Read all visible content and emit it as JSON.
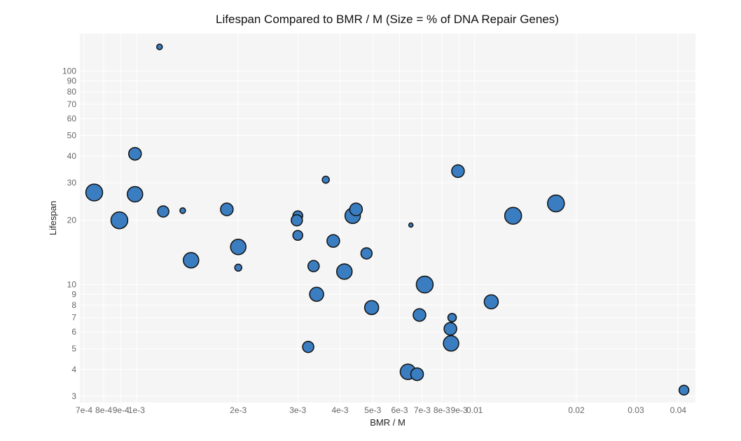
{
  "chart_data": {
    "type": "scatter",
    "title": "Lifespan Compared to BMR / M (Size = % of DNA Repair Genes)",
    "xlabel": "BMR / M",
    "ylabel": "Lifespan",
    "x_scale": "log",
    "y_scale": "log",
    "xlim": [
      0.00068,
      0.045
    ],
    "ylim": [
      2.8,
      150
    ],
    "grid": true,
    "legend": "none",
    "colors": {
      "marker_fill": "#3a7dc0",
      "marker_stroke": "#111111",
      "panel_bg": "#f5f5f5",
      "grid": "#ffffff"
    },
    "x_ticks": [
      {
        "value": 0.0007,
        "label": "7e-4"
      },
      {
        "value": 0.0008,
        "label": "8e-4"
      },
      {
        "value": 0.0009,
        "label": "9e-4"
      },
      {
        "value": 0.001,
        "label": "1e-3"
      },
      {
        "value": 0.002,
        "label": "2e-3"
      },
      {
        "value": 0.003,
        "label": "3e-3"
      },
      {
        "value": 0.004,
        "label": "4e-3"
      },
      {
        "value": 0.005,
        "label": "5e-3"
      },
      {
        "value": 0.006,
        "label": "6e-3"
      },
      {
        "value": 0.007,
        "label": "7e-3"
      },
      {
        "value": 0.008,
        "label": "8e-3"
      },
      {
        "value": 0.009,
        "label": "9e-3"
      },
      {
        "value": 0.01,
        "label": "0.01"
      },
      {
        "value": 0.02,
        "label": "0.02"
      },
      {
        "value": 0.03,
        "label": "0.03"
      },
      {
        "value": 0.04,
        "label": "0.04"
      }
    ],
    "y_ticks": [
      {
        "value": 3,
        "label": "3"
      },
      {
        "value": 4,
        "label": "4"
      },
      {
        "value": 5,
        "label": "5"
      },
      {
        "value": 6,
        "label": "6"
      },
      {
        "value": 7,
        "label": "7"
      },
      {
        "value": 8,
        "label": "8"
      },
      {
        "value": 9,
        "label": "9"
      },
      {
        "value": 10,
        "label": "10"
      },
      {
        "value": 20,
        "label": "20"
      },
      {
        "value": 30,
        "label": "30"
      },
      {
        "value": 40,
        "label": "40"
      },
      {
        "value": 50,
        "label": "50"
      },
      {
        "value": 60,
        "label": "60"
      },
      {
        "value": 70,
        "label": "70"
      },
      {
        "value": 80,
        "label": "80"
      },
      {
        "value": 90,
        "label": "90"
      },
      {
        "value": 100,
        "label": "100"
      }
    ],
    "series": [
      {
        "points": [
          {
            "x": 0.00075,
            "y": 27,
            "size": 12
          },
          {
            "x": 0.00089,
            "y": 20,
            "size": 12
          },
          {
            "x": 0.00099,
            "y": 41,
            "size": 9
          },
          {
            "x": 0.00099,
            "y": 26.5,
            "size": 11
          },
          {
            "x": 0.00117,
            "y": 130,
            "size": 4
          },
          {
            "x": 0.0012,
            "y": 22,
            "size": 8
          },
          {
            "x": 0.00137,
            "y": 22.2,
            "size": 4
          },
          {
            "x": 0.00145,
            "y": 13,
            "size": 11
          },
          {
            "x": 0.00185,
            "y": 22.5,
            "size": 9
          },
          {
            "x": 0.002,
            "y": 15,
            "size": 11
          },
          {
            "x": 0.002,
            "y": 12,
            "size": 5
          },
          {
            "x": 0.003,
            "y": 21,
            "size": 7
          },
          {
            "x": 0.00298,
            "y": 20,
            "size": 8
          },
          {
            "x": 0.003,
            "y": 17,
            "size": 7
          },
          {
            "x": 0.00322,
            "y": 5.1,
            "size": 8
          },
          {
            "x": 0.00334,
            "y": 12.2,
            "size": 8
          },
          {
            "x": 0.00341,
            "y": 9,
            "size": 10
          },
          {
            "x": 0.00363,
            "y": 31,
            "size": 5
          },
          {
            "x": 0.00382,
            "y": 16,
            "size": 9
          },
          {
            "x": 0.00412,
            "y": 11.5,
            "size": 11
          },
          {
            "x": 0.00436,
            "y": 21,
            "size": 11
          },
          {
            "x": 0.00446,
            "y": 22.5,
            "size": 9
          },
          {
            "x": 0.00479,
            "y": 14,
            "size": 8
          },
          {
            "x": 0.00496,
            "y": 7.8,
            "size": 10
          },
          {
            "x": 0.00635,
            "y": 3.9,
            "size": 11
          },
          {
            "x": 0.00648,
            "y": 19,
            "size": 3
          },
          {
            "x": 0.00676,
            "y": 3.8,
            "size": 9
          },
          {
            "x": 0.00687,
            "y": 7.2,
            "size": 9
          },
          {
            "x": 0.00712,
            "y": 10,
            "size": 12
          },
          {
            "x": 0.00858,
            "y": 7,
            "size": 6
          },
          {
            "x": 0.00848,
            "y": 6.2,
            "size": 9
          },
          {
            "x": 0.00852,
            "y": 5.3,
            "size": 11
          },
          {
            "x": 0.00893,
            "y": 34,
            "size": 9
          },
          {
            "x": 0.0112,
            "y": 8.3,
            "size": 10
          },
          {
            "x": 0.013,
            "y": 21,
            "size": 12
          },
          {
            "x": 0.0174,
            "y": 24,
            "size": 12
          },
          {
            "x": 0.0416,
            "y": 3.2,
            "size": 7
          }
        ]
      }
    ]
  }
}
